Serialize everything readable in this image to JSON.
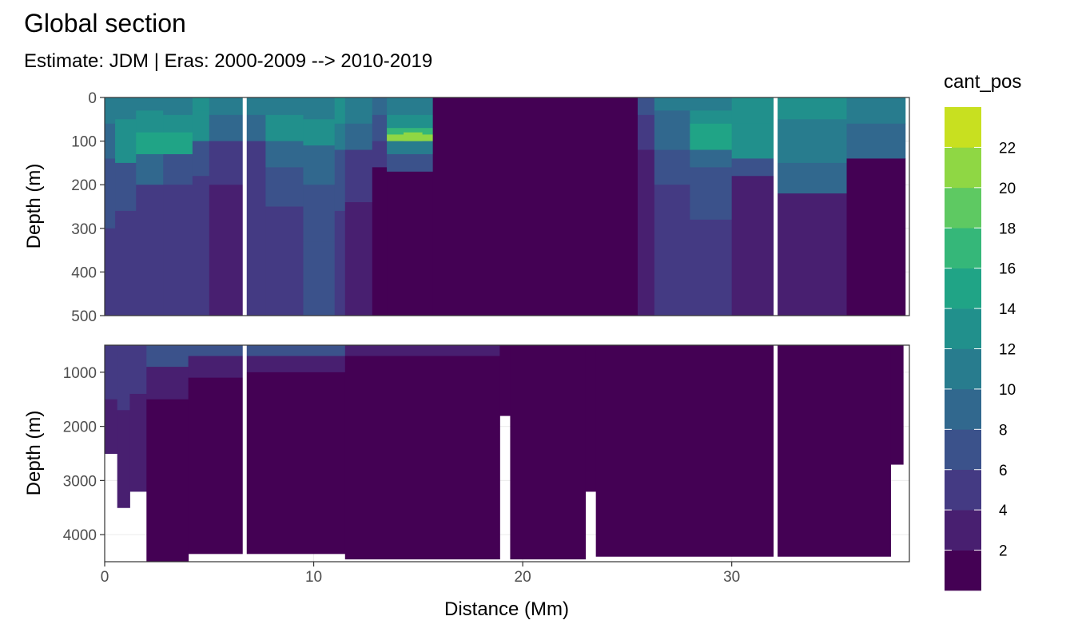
{
  "chart_data": {
    "type": "heatmap",
    "title": "Global section",
    "subtitle": "Estimate: JDM  | Eras: 2000-2009 --> 2010-2019",
    "xlabel": "Distance (Mm)",
    "ylabel": "Depth (m)",
    "legend_title": "cant_pos",
    "legend_placement": "right",
    "grid": true,
    "xlim": [
      0,
      38.5
    ],
    "x_ticks": [
      "0",
      "10",
      "20",
      "30"
    ],
    "panels": [
      {
        "name": "upper",
        "ylim": [
          0,
          500
        ],
        "y_ticks": [
          "0",
          "100",
          "200",
          "300",
          "400",
          "500"
        ]
      },
      {
        "name": "lower",
        "ylim": [
          500,
          4500
        ],
        "y_ticks": [
          "1000",
          "2000",
          "3000",
          "4000"
        ]
      }
    ],
    "gaps_x": [
      6.7,
      32.1
    ],
    "legend": {
      "levels": [
        0,
        2,
        4,
        6,
        8,
        10,
        12,
        14,
        16,
        18,
        20,
        22,
        24
      ],
      "tick_labels": [
        "2",
        "4",
        "6",
        "8",
        "10",
        "12",
        "14",
        "16",
        "18",
        "20",
        "22"
      ],
      "colors": [
        "#440154",
        "#481F70",
        "#443A83",
        "#3B528B",
        "#31688E",
        "#287C8E",
        "#21908C",
        "#20A486",
        "#35B779",
        "#5EC962",
        "#8FD744",
        "#C8E020",
        "#FDE725"
      ]
    },
    "upper_columns": [
      {
        "x": [
          0,
          0.5
        ],
        "bands": [
          [
            0,
            60,
            5
          ],
          [
            60,
            140,
            4
          ],
          [
            140,
            300,
            3
          ],
          [
            300,
            500,
            2
          ]
        ]
      },
      {
        "x": [
          0.5,
          1.5
        ],
        "bands": [
          [
            0,
            50,
            5
          ],
          [
            50,
            150,
            6
          ],
          [
            150,
            260,
            3
          ],
          [
            260,
            500,
            2
          ]
        ]
      },
      {
        "x": [
          1.5,
          2.8
        ],
        "bands": [
          [
            0,
            30,
            5
          ],
          [
            30,
            80,
            6
          ],
          [
            80,
            130,
            7
          ],
          [
            130,
            200,
            4
          ],
          [
            200,
            500,
            2
          ]
        ]
      },
      {
        "x": [
          2.8,
          4.2
        ],
        "bands": [
          [
            0,
            40,
            5
          ],
          [
            40,
            80,
            6
          ],
          [
            80,
            130,
            7
          ],
          [
            130,
            200,
            3
          ],
          [
            200,
            500,
            2
          ]
        ]
      },
      {
        "x": [
          4.2,
          5.0
        ],
        "bands": [
          [
            0,
            30,
            6
          ],
          [
            30,
            100,
            6
          ],
          [
            100,
            180,
            3
          ],
          [
            180,
            500,
            2
          ]
        ]
      },
      {
        "x": [
          5.0,
          6.7
        ],
        "bands": [
          [
            0,
            40,
            5
          ],
          [
            40,
            100,
            4
          ],
          [
            100,
            200,
            2
          ],
          [
            200,
            500,
            1
          ]
        ]
      },
      {
        "x": [
          6.7,
          7.7
        ],
        "bands": [
          [
            0,
            40,
            5
          ],
          [
            40,
            100,
            4
          ],
          [
            100,
            160,
            2
          ],
          [
            160,
            500,
            2
          ]
        ]
      },
      {
        "x": [
          7.7,
          9.5
        ],
        "bands": [
          [
            0,
            40,
            5
          ],
          [
            40,
            100,
            6
          ],
          [
            100,
            160,
            4
          ],
          [
            160,
            250,
            3
          ],
          [
            250,
            500,
            2
          ]
        ]
      },
      {
        "x": [
          9.5,
          11.0
        ],
        "bands": [
          [
            0,
            50,
            5
          ],
          [
            50,
            110,
            6
          ],
          [
            110,
            200,
            4
          ],
          [
            200,
            330,
            3
          ],
          [
            330,
            500,
            3
          ]
        ]
      },
      {
        "x": [
          11.0,
          11.5
        ],
        "bands": [
          [
            0,
            60,
            6
          ],
          [
            60,
            120,
            5
          ],
          [
            120,
            260,
            3
          ],
          [
            260,
            500,
            2
          ]
        ]
      },
      {
        "x": [
          11.5,
          12.8
        ],
        "bands": [
          [
            0,
            60,
            5
          ],
          [
            60,
            120,
            4
          ],
          [
            120,
            240,
            2
          ],
          [
            240,
            500,
            1
          ]
        ]
      },
      {
        "x": [
          12.8,
          13.5
        ],
        "bands": [
          [
            0,
            40,
            4
          ],
          [
            40,
            100,
            3
          ],
          [
            100,
            160,
            2
          ],
          [
            160,
            500,
            0
          ]
        ]
      },
      {
        "x": [
          13.5,
          15.7
        ],
        "bands": [
          [
            0,
            40,
            5
          ],
          [
            40,
            70,
            6
          ],
          [
            70,
            85,
            8
          ],
          [
            85,
            100,
            10
          ],
          [
            100,
            130,
            5
          ],
          [
            130,
            170,
            3
          ],
          [
            170,
            500,
            0
          ]
        ]
      },
      {
        "x": [
          15.7,
          25.5
        ],
        "bands": [
          [
            0,
            500,
            0
          ]
        ]
      },
      {
        "x": [
          25.5,
          26.3
        ],
        "bands": [
          [
            0,
            40,
            3
          ],
          [
            40,
            120,
            2
          ],
          [
            120,
            500,
            1
          ]
        ]
      },
      {
        "x": [
          26.3,
          28.0
        ],
        "bands": [
          [
            0,
            30,
            5
          ],
          [
            30,
            120,
            4
          ],
          [
            120,
            200,
            3
          ],
          [
            200,
            500,
            2
          ]
        ]
      },
      {
        "x": [
          28.0,
          30.0
        ],
        "bands": [
          [
            0,
            30,
            5
          ],
          [
            30,
            60,
            6
          ],
          [
            60,
            120,
            7
          ],
          [
            120,
            160,
            4
          ],
          [
            160,
            280,
            3
          ],
          [
            280,
            500,
            2
          ]
        ]
      },
      {
        "x": [
          30.0,
          32.1
        ],
        "bands": [
          [
            0,
            60,
            6
          ],
          [
            60,
            140,
            6
          ],
          [
            140,
            180,
            3
          ],
          [
            180,
            500,
            1
          ]
        ]
      },
      {
        "x": [
          32.1,
          35.5
        ],
        "bands": [
          [
            0,
            50,
            6
          ],
          [
            50,
            150,
            5
          ],
          [
            150,
            220,
            4
          ],
          [
            220,
            500,
            1
          ]
        ]
      },
      {
        "x": [
          35.5,
          38.3
        ],
        "bands": [
          [
            0,
            60,
            5
          ],
          [
            60,
            140,
            4
          ],
          [
            140,
            500,
            0
          ]
        ]
      }
    ],
    "lower_columns": [
      {
        "x": [
          0,
          0.6
        ],
        "bands": [
          [
            500,
            1500,
            2
          ],
          [
            1500,
            2500,
            1
          ]
        ]
      },
      {
        "x": [
          0.6,
          1.2
        ],
        "bands": [
          [
            500,
            1700,
            2
          ],
          [
            1700,
            3500,
            1
          ]
        ]
      },
      {
        "x": [
          1.2,
          2.0
        ],
        "bands": [
          [
            500,
            1400,
            2
          ],
          [
            1400,
            3200,
            1
          ]
        ]
      },
      {
        "x": [
          2.0,
          4.0
        ],
        "bands": [
          [
            500,
            900,
            3
          ],
          [
            900,
            1500,
            1
          ],
          [
            1500,
            4500,
            0
          ]
        ]
      },
      {
        "x": [
          4.0,
          6.7
        ],
        "bands": [
          [
            500,
            700,
            3
          ],
          [
            700,
            1100,
            1
          ],
          [
            1100,
            4350,
            0
          ]
        ]
      },
      {
        "x": [
          6.7,
          11.5
        ],
        "bands": [
          [
            500,
            700,
            3
          ],
          [
            700,
            1000,
            1
          ],
          [
            1000,
            4350,
            0
          ]
        ]
      },
      {
        "x": [
          11.5,
          18.9
        ],
        "bands": [
          [
            500,
            700,
            1
          ],
          [
            700,
            4450,
            0
          ]
        ]
      },
      {
        "x": [
          18.9,
          19.4
        ],
        "bands": [
          [
            500,
            1800,
            0
          ]
        ]
      },
      {
        "x": [
          19.4,
          23.0
        ],
        "bands": [
          [
            500,
            4450,
            0
          ]
        ]
      },
      {
        "x": [
          23.0,
          23.5
        ],
        "bands": [
          [
            500,
            3200,
            0
          ]
        ]
      },
      {
        "x": [
          23.5,
          37.6
        ],
        "bands": [
          [
            500,
            4400,
            0
          ]
        ]
      },
      {
        "x": [
          37.6,
          38.2
        ],
        "bands": [
          [
            500,
            2700,
            0
          ]
        ]
      }
    ],
    "hotspot": {
      "x": [
        14.3,
        15.2
      ],
      "depth": [
        80,
        100
      ],
      "value": 20
    }
  }
}
